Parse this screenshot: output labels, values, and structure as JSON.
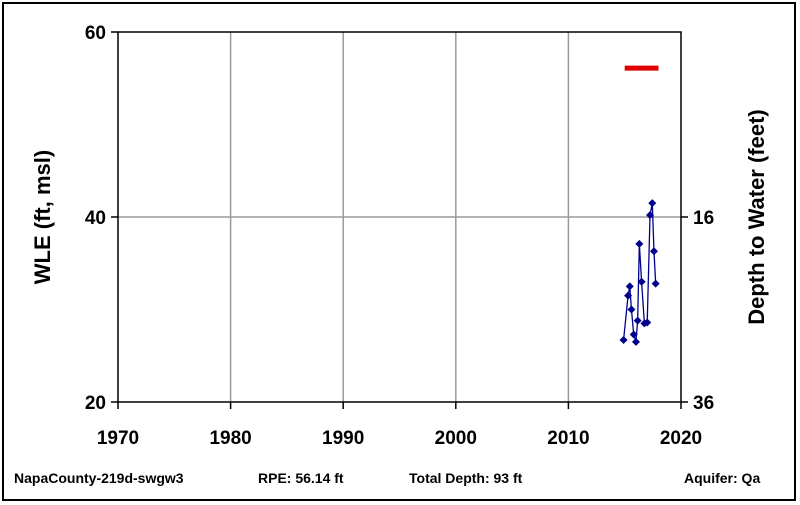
{
  "chart_data": {
    "type": "scatter",
    "title": "",
    "ylabel": "WLE (ft, msl)",
    "y2label": "Depth to Water (feet)",
    "xlim": [
      1970,
      2020
    ],
    "ylim": [
      20,
      60
    ],
    "x_ticks": [
      "1970",
      "1980",
      "1990",
      "2000",
      "2010",
      "2020"
    ],
    "y_ticks": [
      "20",
      "40",
      "60"
    ],
    "y2_ticks": [
      "16",
      "36"
    ],
    "grid": true,
    "colors": {
      "series": "#00008B",
      "reference": "#E00000"
    },
    "series": [
      {
        "x": [
          2014.9,
          2015.3,
          2015.45,
          2015.6,
          2015.8,
          2016.0,
          2016.15,
          2016.3,
          2016.5,
          2016.75,
          2017.0,
          2017.25,
          2017.45,
          2017.6,
          2017.75
        ],
        "y": [
          26.7,
          31.5,
          32.5,
          30.0,
          27.3,
          26.5,
          28.8,
          37.1,
          33.0,
          28.5,
          28.6,
          40.2,
          41.5,
          36.3,
          32.8
        ]
      }
    ],
    "reference_line": {
      "x": [
        2015.0,
        2018.0
      ],
      "y": 56.1
    }
  },
  "footer": {
    "well_name": "NapaCounty-219d-swgw3",
    "rpe": "RPE: 56.14 ft",
    "total_depth": "Total Depth: 93 ft",
    "aquifer": "Aquifer: Qa"
  }
}
